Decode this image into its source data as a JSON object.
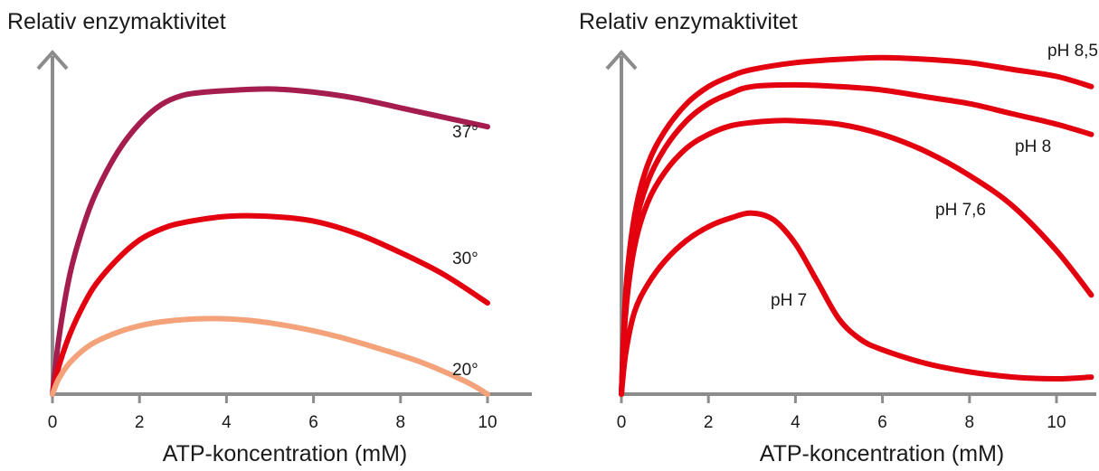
{
  "chart_data": [
    {
      "type": "line",
      "ylabel": "Relativ enzymaktivitet",
      "xlabel": "ATP-koncentration (mM)",
      "xlim": [
        0,
        10.8
      ],
      "ylim": [
        0,
        1
      ],
      "xticks": [
        "0",
        "2",
        "4",
        "6",
        "8",
        "10"
      ],
      "yticks": false,
      "grid": false,
      "series": [
        {
          "name": "37°",
          "color": "#a51c4e",
          "x": [
            0,
            0.15,
            0.4,
            0.7,
            1.0,
            1.5,
            2.0,
            2.5,
            3.0,
            3.5,
            4.0,
            5.0,
            6.0,
            7.0,
            8.0,
            9.0,
            10.0
          ],
          "y": [
            0,
            0.18,
            0.38,
            0.53,
            0.64,
            0.77,
            0.86,
            0.92,
            0.95,
            0.96,
            0.965,
            0.97,
            0.96,
            0.94,
            0.91,
            0.88,
            0.85
          ]
        },
        {
          "name": "30°",
          "color": "#e3000f",
          "x": [
            0,
            0.15,
            0.4,
            0.7,
            1.0,
            1.5,
            2.0,
            2.5,
            3.0,
            4.0,
            5.0,
            6.0,
            7.0,
            8.0,
            9.0,
            10.0
          ],
          "y": [
            0,
            0.09,
            0.19,
            0.28,
            0.35,
            0.43,
            0.49,
            0.525,
            0.545,
            0.565,
            0.565,
            0.55,
            0.51,
            0.45,
            0.38,
            0.29
          ]
        },
        {
          "name": "20°",
          "color": "#f4a27a",
          "x": [
            0,
            0.15,
            0.4,
            0.8,
            1.2,
            1.8,
            2.5,
            3.5,
            4.5,
            5.5,
            6.5,
            7.5,
            8.5,
            9.5,
            10.0
          ],
          "y": [
            0,
            0.05,
            0.1,
            0.15,
            0.18,
            0.21,
            0.23,
            0.24,
            0.235,
            0.215,
            0.185,
            0.145,
            0.1,
            0.04,
            0.0
          ]
        }
      ]
    },
    {
      "type": "line",
      "ylabel": "Relativ enzymaktivitet",
      "xlabel": "ATP-koncentration (mM)",
      "xlim": [
        0,
        10.8
      ],
      "ylim": [
        0,
        1
      ],
      "xticks": [
        "0",
        "2",
        "4",
        "6",
        "8",
        "10"
      ],
      "yticks": false,
      "grid": false,
      "series": [
        {
          "name": "pH 8,5",
          "color": "#e3000f",
          "x": [
            0,
            0.1,
            0.3,
            0.6,
            1.0,
            1.5,
            2.0,
            2.5,
            3.0,
            4.0,
            5.0,
            6.0,
            7.0,
            8.0,
            9.0,
            10.0,
            10.8
          ],
          "y": [
            0,
            0.3,
            0.52,
            0.67,
            0.77,
            0.85,
            0.9,
            0.93,
            0.95,
            0.97,
            0.98,
            0.985,
            0.98,
            0.97,
            0.95,
            0.93,
            0.9
          ]
        },
        {
          "name": "pH 8",
          "color": "#e3000f",
          "x": [
            0,
            0.1,
            0.3,
            0.6,
            1.0,
            1.5,
            2.0,
            2.5,
            3.0,
            4.0,
            5.0,
            6.0,
            7.0,
            8.0,
            9.0,
            10.0,
            10.8
          ],
          "y": [
            0,
            0.27,
            0.48,
            0.62,
            0.72,
            0.8,
            0.85,
            0.88,
            0.9,
            0.905,
            0.9,
            0.89,
            0.87,
            0.85,
            0.82,
            0.79,
            0.76
          ]
        },
        {
          "name": "pH 7,6",
          "color": "#e3000f",
          "x": [
            0,
            0.1,
            0.3,
            0.6,
            1.0,
            1.5,
            2.0,
            2.5,
            3.0,
            3.5,
            4.0,
            5.0,
            6.0,
            7.0,
            8.0,
            9.0,
            10.0,
            10.8
          ],
          "y": [
            0,
            0.24,
            0.43,
            0.56,
            0.65,
            0.72,
            0.76,
            0.785,
            0.795,
            0.8,
            0.8,
            0.79,
            0.76,
            0.71,
            0.64,
            0.55,
            0.42,
            0.29
          ]
        },
        {
          "name": "pH 7",
          "color": "#e3000f",
          "x": [
            0,
            0.1,
            0.3,
            0.6,
            1.0,
            1.5,
            2.0,
            2.5,
            3.0,
            3.5,
            4.0,
            4.5,
            5.0,
            5.5,
            6.0,
            7.0,
            8.0,
            9.0,
            10.0,
            10.8
          ],
          "y": [
            0,
            0.12,
            0.24,
            0.32,
            0.39,
            0.45,
            0.49,
            0.515,
            0.53,
            0.51,
            0.44,
            0.33,
            0.22,
            0.16,
            0.13,
            0.09,
            0.065,
            0.05,
            0.045,
            0.05
          ]
        }
      ]
    }
  ]
}
